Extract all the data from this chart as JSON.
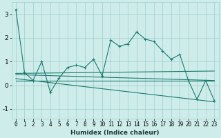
{
  "xlabel": "Humidex (Indice chaleur)",
  "bg_color": "#ceecea",
  "grid_color": "#9ecfcc",
  "line_color": "#1a7a6e",
  "xlim": [
    -0.5,
    23.5
  ],
  "ylim": [
    -1.4,
    3.5
  ],
  "xticks": [
    0,
    1,
    2,
    3,
    4,
    5,
    6,
    7,
    8,
    9,
    10,
    11,
    12,
    13,
    14,
    15,
    16,
    17,
    18,
    19,
    20,
    21,
    22,
    23
  ],
  "yticks": [
    -1,
    0,
    1,
    2,
    3
  ],
  "series1": [
    3.2,
    0.55,
    0.2,
    1.0,
    -0.3,
    0.3,
    0.75,
    0.85,
    0.75,
    1.1,
    0.4,
    1.9,
    1.65,
    1.75,
    2.25,
    1.95,
    1.85,
    1.45,
    1.1,
    1.3,
    0.2,
    -0.6,
    0.2,
    -0.65
  ],
  "trend1_x": [
    0,
    23
  ],
  "trend1_y": [
    0.5,
    0.6
  ],
  "trend2_x": [
    0,
    23
  ],
  "trend2_y": [
    0.45,
    0.2
  ],
  "trend3_x": [
    0,
    23
  ],
  "trend3_y": [
    0.28,
    -0.7
  ],
  "trend4_x": [
    0,
    23
  ],
  "trend4_y": [
    0.18,
    0.18
  ]
}
